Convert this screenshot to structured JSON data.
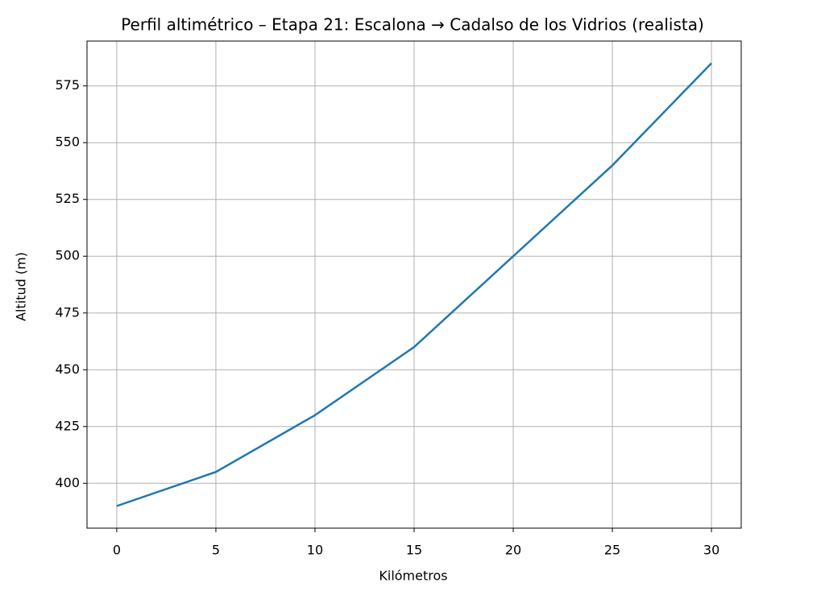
{
  "chart_data": {
    "type": "line",
    "title": "Perfil altimétrico – Etapa 21: Escalona → Cadalso de los Vidrios (realista)",
    "x_label": "Kilómetros",
    "y_label": "Altitud (m)",
    "x": [
      0,
      5,
      10,
      15,
      20,
      25,
      30
    ],
    "series": [
      {
        "name": "Altitud",
        "color": "#1f77b4",
        "values": [
          390,
          405,
          430,
          460,
          500,
          540,
          585
        ]
      }
    ],
    "xlim": [
      -1.5,
      31.5
    ],
    "xticks": [
      0,
      5,
      10,
      15,
      20,
      25,
      30
    ],
    "ylim": [
      380.25,
      594.75
    ],
    "yticks": [
      400,
      425,
      450,
      475,
      500,
      525,
      550,
      575
    ],
    "grid": true
  }
}
